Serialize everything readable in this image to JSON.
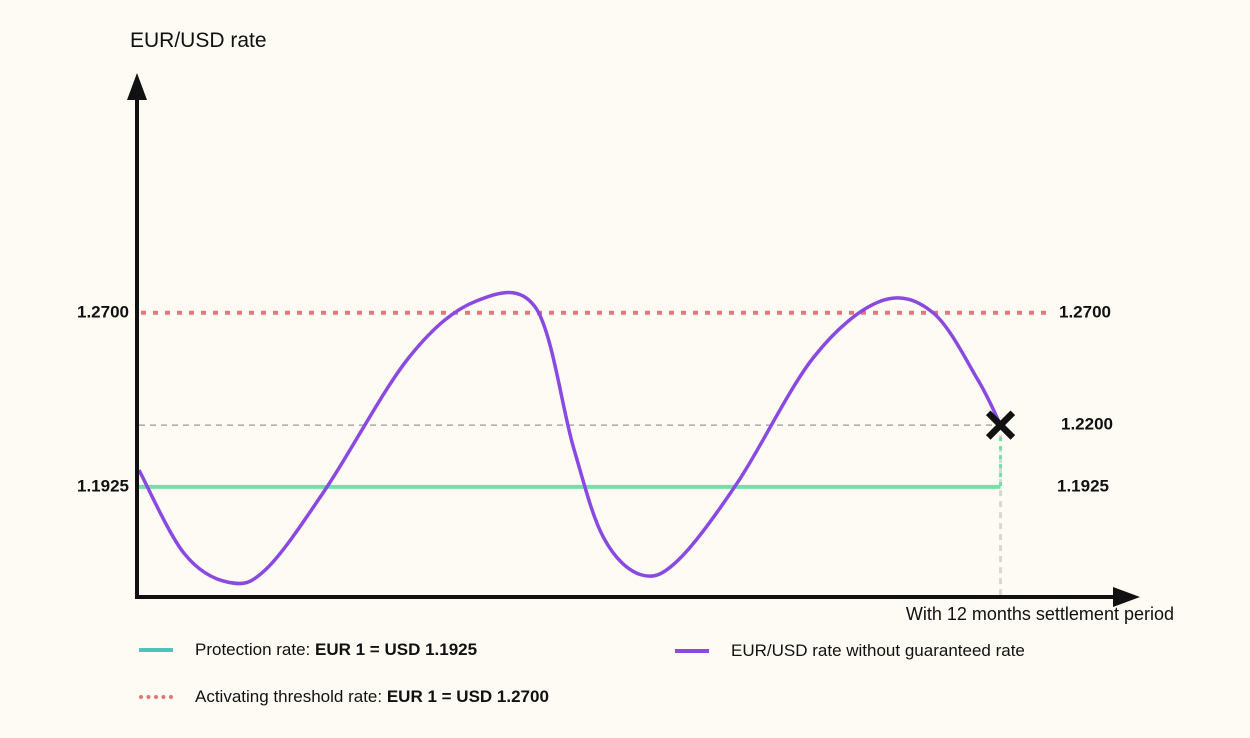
{
  "chart_data": {
    "type": "line",
    "ylabel": "EUR/USD rate",
    "xlabel": "With 12 months settlement period",
    "ylim": [
      1.1435,
      1.3665
    ],
    "xlim": [
      0,
      12
    ],
    "protection_rate": {
      "value": 1.1925,
      "label": "1.1925",
      "color": "#74e0a8"
    },
    "activating_threshold": {
      "value": 1.27,
      "label": "1.2700",
      "color": "#e07a78"
    },
    "settlement_point": {
      "x": 11.5,
      "y": 1.22,
      "label": "1.2200",
      "marker": "x-mark-icon"
    },
    "series": [
      {
        "color": "#8a49e0",
        "x": [
          0,
          0.6,
          1.2,
          1.7,
          2.5,
          3.6,
          4.5,
          5.3,
          5.8,
          6.2,
          6.7,
          7.2,
          8.0,
          9.0,
          9.9,
          10.6,
          11.2,
          11.5
        ],
        "y": [
          1.2,
          1.163,
          1.15,
          1.156,
          1.192,
          1.25,
          1.2752,
          1.272,
          1.21,
          1.17,
          1.1534,
          1.16,
          1.195,
          1.25,
          1.2752,
          1.27,
          1.24,
          1.22
        ]
      }
    ]
  },
  "legend": {
    "protection": {
      "label": "Protection rate:",
      "value": "EUR 1 = USD 1.1925",
      "color": "#4fc3b6"
    },
    "threshold": {
      "label": "Activating threshold rate:",
      "value": "EUR 1 = USD 1.2700",
      "color": "#e07a78"
    },
    "series": {
      "label": "EUR/USD rate without guaranteed rate",
      "color": "#8a49e0"
    }
  }
}
